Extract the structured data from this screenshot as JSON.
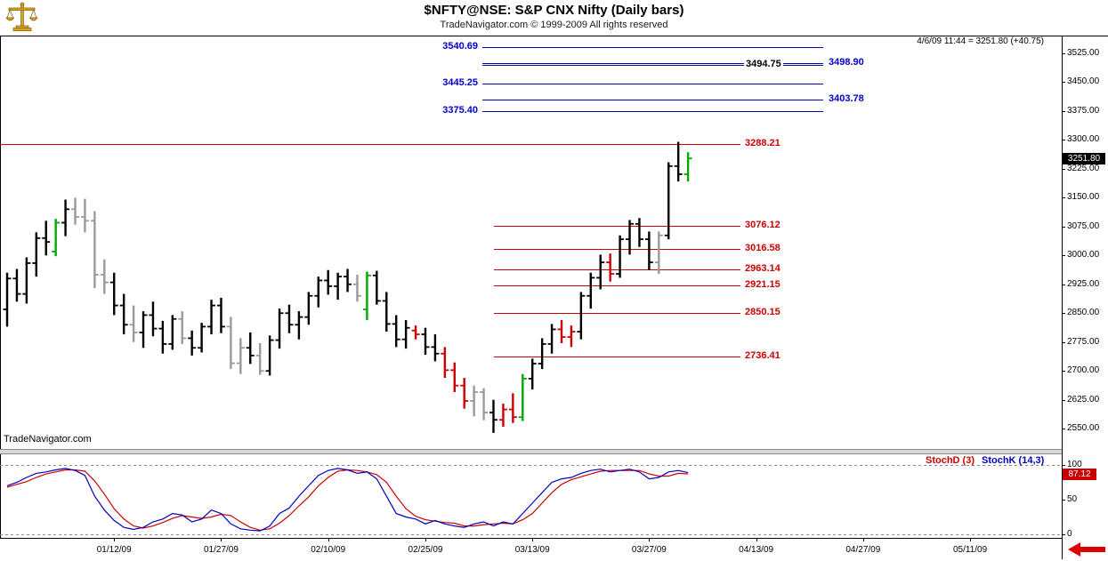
{
  "header": {
    "title": "$NFTY@NSE:  S&P CNX Nifty  (Daily bars)",
    "copyright": "TradeNavigator.com © 1999-2009 All rights reserved",
    "quote_status": "4/6/09 11:44 = 3251.80 (+40.75)"
  },
  "watermark": "TradeNavigator.com",
  "price_axis": {
    "tick_labels": [
      "3525.00",
      "3450.00",
      "3375.00",
      "3300.00",
      "3225.00",
      "3150.00",
      "3075.00",
      "3000.00",
      "2925.00",
      "2850.00",
      "2775.00",
      "2700.00",
      "2625.00",
      "2550.00"
    ],
    "last_price_badge": {
      "text": "3251.80",
      "value": 3251.8,
      "bg": "#000000",
      "fg": "#ffffff"
    }
  },
  "stoch_axis": {
    "tick_labels": [
      "100",
      "50",
      "0"
    ],
    "badge": {
      "text": "87.12",
      "value": 87.12,
      "bg": "#cc0000",
      "fg": "#ffffff"
    }
  },
  "legend": {
    "stochd": "StochD (3)",
    "stochk": "StochK (14,3)",
    "stochd_color": "#cc0000",
    "stochk_color": "#0000bf"
  },
  "levels": {
    "blue_color": "#0000a8",
    "red_color": "#cc0000",
    "blue": [
      {
        "label": "3540.69",
        "value": 3540.69,
        "label_side": "left"
      },
      {
        "label": "3498.90",
        "value": 3498.9,
        "label_side": "right"
      },
      {
        "label": "3494.75",
        "value": 3494.75,
        "label_side": "inline"
      },
      {
        "label": "3445.25",
        "value": 3445.25,
        "label_side": "left"
      },
      {
        "label": "3403.78",
        "value": 3403.78,
        "label_side": "right"
      },
      {
        "label": "3375.40",
        "value": 3375.4,
        "label_side": "left"
      }
    ],
    "red": [
      {
        "label": "3288.21",
        "value": 3288.21,
        "extends_full_left": true
      },
      {
        "label": "3076.12",
        "value": 3076.12
      },
      {
        "label": "3016.58",
        "value": 3016.58
      },
      {
        "label": "2963.14",
        "value": 2963.14
      },
      {
        "label": "2921.15",
        "value": 2921.15
      },
      {
        "label": "2850.15",
        "value": 2850.15
      },
      {
        "label": "2736.41",
        "value": 2736.41
      }
    ]
  },
  "x_axis": {
    "ticks": [
      {
        "label": "01/12/09",
        "slot": 12
      },
      {
        "label": "01/27/09",
        "slot": 23
      },
      {
        "label": "02/10/09",
        "slot": 34
      },
      {
        "label": "02/25/09",
        "slot": 44
      },
      {
        "label": "03/13/09",
        "slot": 55
      },
      {
        "label": "03/27/09",
        "slot": 67
      },
      {
        "label": "04/13/09",
        "slot": 78
      },
      {
        "label": "04/27/09",
        "slot": 89
      },
      {
        "label": "05/11/09",
        "slot": 100
      }
    ]
  },
  "chart_data": {
    "type": "candlestick",
    "title": "$NFTY@NSE:  S&P CNX Nifty  (Daily bars)",
    "x_slots_total": 108,
    "price_pane": {
      "ylim": [
        2495,
        3571
      ],
      "bar_colors": {
        "black": "#000000",
        "gray": "#9a9a9a",
        "green": "#00a800",
        "red": "#cc0000"
      },
      "bars": [
        [
          2860,
          2955,
          2815,
          2940,
          "black"
        ],
        [
          2940,
          2965,
          2880,
          2900,
          "black"
        ],
        [
          2900,
          2995,
          2875,
          2980,
          "black"
        ],
        [
          2980,
          3060,
          2945,
          3045,
          "black"
        ],
        [
          3045,
          3090,
          3000,
          3035,
          "black"
        ],
        [
          3010,
          3095,
          2998,
          3085,
          "green"
        ],
        [
          3085,
          3145,
          3050,
          3120,
          "black"
        ],
        [
          3120,
          3150,
          3080,
          3100,
          "gray"
        ],
        [
          3100,
          3147,
          3060,
          3090,
          "gray"
        ],
        [
          3090,
          3115,
          2915,
          2950,
          "gray"
        ],
        [
          2950,
          2990,
          2900,
          2930,
          "gray"
        ],
        [
          2930,
          2955,
          2845,
          2870,
          "black"
        ],
        [
          2870,
          2900,
          2795,
          2820,
          "black"
        ],
        [
          2820,
          2870,
          2775,
          2800,
          "gray"
        ],
        [
          2800,
          2855,
          2760,
          2845,
          "black"
        ],
        [
          2845,
          2880,
          2790,
          2810,
          "black"
        ],
        [
          2810,
          2830,
          2745,
          2770,
          "black"
        ],
        [
          2770,
          2845,
          2755,
          2835,
          "black"
        ],
        [
          2835,
          2855,
          2770,
          2785,
          "gray"
        ],
        [
          2785,
          2805,
          2740,
          2760,
          "black"
        ],
        [
          2760,
          2825,
          2748,
          2815,
          "black"
        ],
        [
          2815,
          2885,
          2795,
          2870,
          "black"
        ],
        [
          2870,
          2890,
          2798,
          2815,
          "black"
        ],
        [
          2815,
          2840,
          2705,
          2720,
          "gray"
        ],
        [
          2720,
          2785,
          2692,
          2760,
          "gray"
        ],
        [
          2760,
          2800,
          2718,
          2740,
          "black"
        ],
        [
          2740,
          2772,
          2690,
          2700,
          "gray"
        ],
        [
          2700,
          2792,
          2688,
          2780,
          "black"
        ],
        [
          2780,
          2862,
          2758,
          2850,
          "black"
        ],
        [
          2850,
          2872,
          2798,
          2820,
          "black"
        ],
        [
          2820,
          2855,
          2782,
          2840,
          "black"
        ],
        [
          2840,
          2905,
          2820,
          2895,
          "black"
        ],
        [
          2895,
          2945,
          2865,
          2935,
          "black"
        ],
        [
          2935,
          2962,
          2898,
          2920,
          "black"
        ],
        [
          2920,
          2955,
          2885,
          2945,
          "black"
        ],
        [
          2945,
          2965,
          2905,
          2925,
          "black"
        ],
        [
          2925,
          2950,
          2880,
          2895,
          "gray"
        ],
        [
          2860,
          2958,
          2832,
          2948,
          "green"
        ],
        [
          2948,
          2960,
          2872,
          2882,
          "black"
        ],
        [
          2882,
          2905,
          2802,
          2822,
          "black"
        ],
        [
          2822,
          2845,
          2762,
          2782,
          "black"
        ],
        [
          2782,
          2832,
          2758,
          2812,
          "black"
        ],
        [
          2805,
          2818,
          2782,
          2795,
          "red"
        ],
        [
          2795,
          2812,
          2742,
          2762,
          "black"
        ],
        [
          2762,
          2795,
          2725,
          2745,
          "black"
        ],
        [
          2745,
          2762,
          2682,
          2702,
          "red"
        ],
        [
          2702,
          2722,
          2645,
          2662,
          "red"
        ],
        [
          2662,
          2682,
          2602,
          2622,
          "red"
        ],
        [
          2622,
          2662,
          2582,
          2645,
          "gray"
        ],
        [
          2645,
          2655,
          2572,
          2592,
          "gray"
        ],
        [
          2592,
          2625,
          2539,
          2573,
          "black"
        ],
        [
          2573,
          2615,
          2555,
          2600,
          "red"
        ],
        [
          2600,
          2642,
          2565,
          2580,
          "red"
        ],
        [
          2580,
          2692,
          2570,
          2680,
          "green"
        ],
        [
          2680,
          2732,
          2652,
          2719,
          "black"
        ],
        [
          2719,
          2785,
          2705,
          2770,
          "black"
        ],
        [
          2770,
          2822,
          2745,
          2808,
          "black"
        ],
        [
          2808,
          2832,
          2772,
          2788,
          "red"
        ],
        [
          2788,
          2818,
          2762,
          2802,
          "red"
        ],
        [
          2802,
          2905,
          2782,
          2895,
          "black"
        ],
        [
          2895,
          2955,
          2862,
          2942,
          "black"
        ],
        [
          2942,
          3002,
          2912,
          2982,
          "black"
        ],
        [
          2982,
          3005,
          2932,
          2952,
          "red"
        ],
        [
          2952,
          3052,
          2942,
          3042,
          "black"
        ],
        [
          3042,
          3092,
          3002,
          3082,
          "black"
        ],
        [
          3082,
          3097,
          3022,
          3042,
          "black"
        ],
        [
          3042,
          3062,
          2962,
          2982,
          "black"
        ],
        [
          2982,
          3062,
          2952,
          3052,
          "gray"
        ],
        [
          3052,
          3242,
          3042,
          3232,
          "black"
        ],
        [
          3232,
          3295,
          3192,
          3211,
          "black"
        ],
        [
          3211,
          3268,
          3192,
          3251.8,
          "green"
        ]
      ]
    },
    "indicator_pane": {
      "name": "Stochastics",
      "type": "line",
      "ylim": [
        0,
        100
      ],
      "series": [
        {
          "name": "StochD (3)",
          "color": "#cc0000",
          "values": [
            68,
            72,
            76,
            82,
            87,
            90,
            93,
            93,
            91,
            77,
            58,
            37,
            22,
            12,
            9,
            12,
            17,
            23,
            27,
            25,
            23,
            25,
            29,
            27,
            18,
            10,
            6,
            8,
            16,
            27,
            41,
            54,
            70,
            82,
            91,
            93,
            92,
            90,
            86,
            75,
            55,
            37,
            26,
            21,
            19,
            17,
            16,
            12,
            12,
            14,
            15,
            16,
            15,
            21,
            30,
            45,
            60,
            72,
            79,
            83,
            87,
            91,
            92,
            92,
            92,
            92,
            87,
            84,
            84,
            88,
            87.12
          ]
        },
        {
          "name": "StochK (14,3)",
          "color": "#0000bf",
          "values": [
            70,
            75,
            82,
            88,
            90,
            93,
            95,
            92,
            85,
            55,
            35,
            20,
            10,
            7,
            10,
            18,
            22,
            30,
            28,
            18,
            22,
            35,
            30,
            15,
            8,
            6,
            5,
            12,
            30,
            38,
            55,
            70,
            85,
            92,
            95,
            93,
            88,
            90,
            80,
            55,
            30,
            25,
            22,
            15,
            20,
            15,
            12,
            10,
            15,
            18,
            12,
            18,
            15,
            30,
            45,
            60,
            75,
            80,
            82,
            88,
            92,
            94,
            90,
            92,
            94,
            90,
            80,
            82,
            90,
            92,
            89
          ]
        }
      ]
    }
  }
}
